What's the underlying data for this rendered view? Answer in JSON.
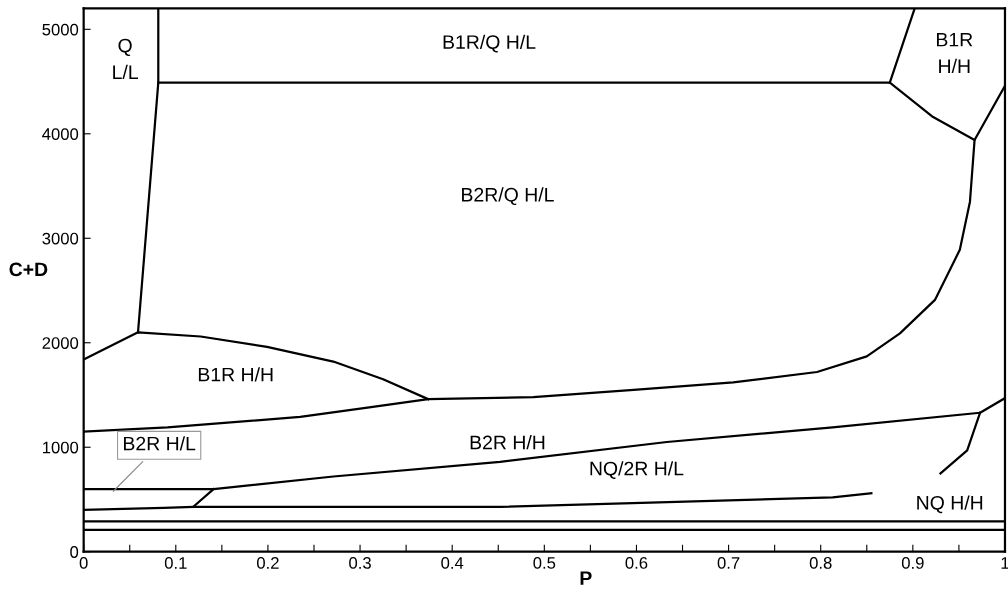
{
  "chart_data": {
    "type": "line",
    "xlabel": "P",
    "ylabel": "C+D",
    "xlim": [
      0,
      1
    ],
    "ylim": [
      0,
      5200
    ],
    "xticks": [
      0,
      {
        "value": 0.05,
        "label": null
      },
      0.1,
      {
        "value": 0.15,
        "label": null
      },
      0.2,
      {
        "value": 0.25,
        "label": null
      },
      0.3,
      {
        "value": 0.35,
        "label": null
      },
      0.4,
      {
        "value": 0.45,
        "label": null
      },
      0.5,
      {
        "value": 0.55,
        "label": null
      },
      0.6,
      {
        "value": 0.65,
        "label": null
      },
      0.7,
      {
        "value": 0.75,
        "label": null
      },
      0.8,
      {
        "value": 0.85,
        "label": null
      },
      0.9,
      {
        "value": 0.95,
        "label": null
      },
      1
    ],
    "yticks": [
      0,
      1000,
      2000,
      3000,
      4000,
      5000
    ],
    "grid": false,
    "legend": false,
    "marker": "none",
    "line_style": "solid",
    "series": [
      {
        "color": "#000000",
        "x": [
          0.081,
          0.081,
          0.059
        ],
        "values": [
          5200,
          4490,
          2100
        ]
      },
      {
        "color": "#000000",
        "x": [
          0.081,
          0.875
        ],
        "values": [
          4490,
          4490
        ]
      },
      {
        "color": "#000000",
        "x": [
          0.875,
          0.902
        ],
        "values": [
          4490,
          5200
        ]
      },
      {
        "color": "#000000",
        "x": [
          0.875,
          0.922,
          0.967,
          1
        ],
        "values": [
          4490,
          4160,
          3940,
          4460
        ]
      },
      {
        "color": "#000000",
        "x": [
          0,
          0.091,
          0.235,
          0.308,
          0.374,
          0.488,
          0.597,
          0.705,
          0.796,
          0.85,
          0.886,
          0.924,
          0.951,
          0.962,
          0.967
        ],
        "values": [
          1150,
          1190,
          1290,
          1380,
          1460,
          1480,
          1550,
          1620,
          1720,
          1870,
          2090,
          2410,
          2890,
          3350,
          3940
        ]
      },
      {
        "color": "#000000",
        "x": [
          0,
          0.059,
          0.127,
          0.199,
          0.271,
          0.325,
          0.374
        ],
        "values": [
          1840,
          2100,
          2060,
          1960,
          1820,
          1650,
          1460
        ]
      },
      {
        "color": "#000000",
        "x": [
          0,
          0.141,
          0.271,
          0.452,
          0.633,
          0.813,
          0.973,
          1
        ],
        "values": [
          600,
          600,
          720,
          860,
          1050,
          1190,
          1330,
          1470
        ]
      },
      {
        "color": "#000000",
        "x": [
          0.119,
          0.141
        ],
        "values": [
          430,
          600
        ]
      },
      {
        "color": "#000000",
        "x": [
          0,
          0.087,
          0.119,
          0.184,
          0.452,
          0.615,
          0.813,
          0.855
        ],
        "values": [
          400,
          420,
          430,
          430,
          430,
          470,
          520,
          560
        ]
      },
      {
        "color": "#000000",
        "x": [
          0.973,
          0.959,
          0.93
        ],
        "values": [
          1330,
          970,
          750
        ]
      },
      {
        "color": "#000000",
        "x": [
          0,
          1
        ],
        "values": [
          290,
          290
        ]
      },
      {
        "color": "#000000",
        "x": [
          0,
          1
        ],
        "values": [
          210,
          210
        ]
      }
    ],
    "annotations": [
      "Q\nL/L",
      "B1R/Q H/L",
      "B1R\nH/H",
      "B2R/Q H/L",
      "B1R H/H",
      "B2R H/H",
      {
        "text": "B2R H/L",
        "x": 0.03,
        "y": 560
      },
      "NQ/2R H/L",
      "NQ H/H"
    ]
  }
}
